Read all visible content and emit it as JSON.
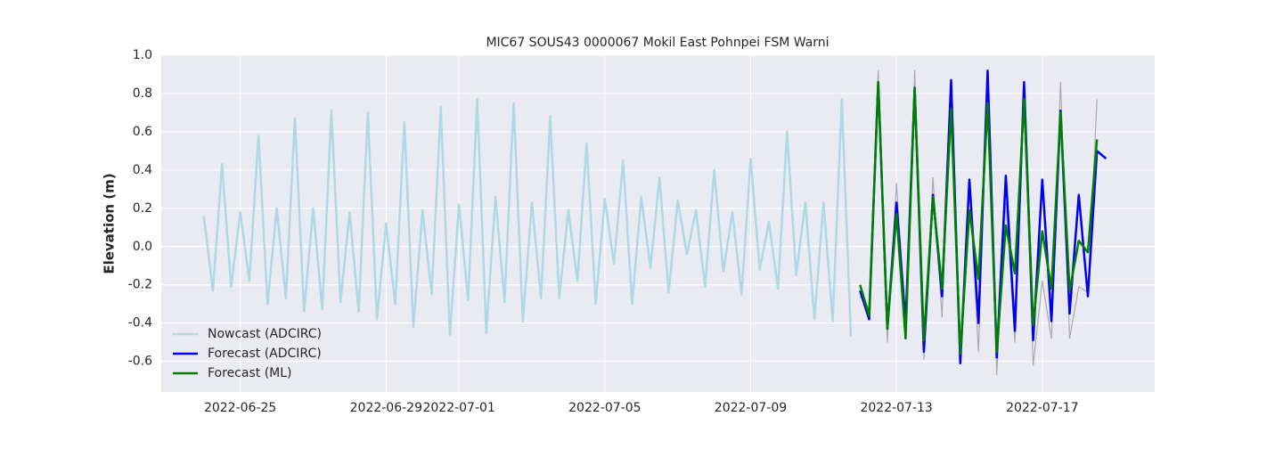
{
  "chart_data": {
    "type": "line",
    "title": "MIC67 SOUS43 0000067 Mokil East Pohnpei FSM Warni",
    "y_label": "Elevation (m)",
    "x": [
      "2022-06-24 00:00",
      "2022-06-24 06:00",
      "2022-06-24 12:00",
      "2022-06-24 18:00",
      "2022-06-25 00:00",
      "2022-06-25 06:00",
      "2022-06-25 12:00",
      "2022-06-25 18:00",
      "2022-06-26 00:00",
      "2022-06-26 06:00",
      "2022-06-26 12:00",
      "2022-06-26 18:00",
      "2022-06-27 00:00",
      "2022-06-27 06:00",
      "2022-06-27 12:00",
      "2022-06-27 18:00",
      "2022-06-28 00:00",
      "2022-06-28 06:00",
      "2022-06-28 12:00",
      "2022-06-28 18:00",
      "2022-06-29 00:00",
      "2022-06-29 06:00",
      "2022-06-29 12:00",
      "2022-06-29 18:00",
      "2022-06-30 00:00",
      "2022-06-30 06:00",
      "2022-06-30 12:00",
      "2022-06-30 18:00",
      "2022-07-01 00:00",
      "2022-07-01 06:00",
      "2022-07-01 12:00",
      "2022-07-01 18:00",
      "2022-07-02 00:00",
      "2022-07-02 06:00",
      "2022-07-02 12:00",
      "2022-07-02 18:00",
      "2022-07-03 00:00",
      "2022-07-03 06:00",
      "2022-07-03 12:00",
      "2022-07-03 18:00",
      "2022-07-04 00:00",
      "2022-07-04 06:00",
      "2022-07-04 12:00",
      "2022-07-04 18:00",
      "2022-07-05 00:00",
      "2022-07-05 06:00",
      "2022-07-05 12:00",
      "2022-07-05 18:00",
      "2022-07-06 00:00",
      "2022-07-06 06:00",
      "2022-07-06 12:00",
      "2022-07-06 18:00",
      "2022-07-07 00:00",
      "2022-07-07 06:00",
      "2022-07-07 12:00",
      "2022-07-07 18:00",
      "2022-07-08 00:00",
      "2022-07-08 06:00",
      "2022-07-08 12:00",
      "2022-07-08 18:00",
      "2022-07-09 00:00",
      "2022-07-09 06:00",
      "2022-07-09 12:00",
      "2022-07-09 18:00",
      "2022-07-10 00:00",
      "2022-07-10 06:00",
      "2022-07-10 12:00",
      "2022-07-10 18:00",
      "2022-07-11 00:00",
      "2022-07-11 06:00",
      "2022-07-11 12:00",
      "2022-07-11 18:00",
      "2022-07-12 00:00",
      "2022-07-12 06:00",
      "2022-07-12 12:00",
      "2022-07-12 18:00",
      "2022-07-13 00:00",
      "2022-07-13 06:00",
      "2022-07-13 12:00",
      "2022-07-13 18:00",
      "2022-07-14 00:00",
      "2022-07-14 06:00",
      "2022-07-14 12:00",
      "2022-07-14 18:00",
      "2022-07-15 00:00",
      "2022-07-15 06:00",
      "2022-07-15 12:00",
      "2022-07-15 18:00",
      "2022-07-16 00:00",
      "2022-07-16 06:00",
      "2022-07-16 12:00",
      "2022-07-16 18:00",
      "2022-07-17 00:00",
      "2022-07-17 06:00",
      "2022-07-17 12:00",
      "2022-07-17 18:00",
      "2022-07-18 00:00",
      "2022-07-18 06:00",
      "2022-07-18 12:00",
      "2022-07-18 18:00"
    ],
    "series": [
      {
        "color": "#aaaaaa",
        "width": 1.2,
        "values": [
          null,
          null,
          null,
          null,
          null,
          null,
          null,
          null,
          null,
          null,
          null,
          null,
          null,
          null,
          null,
          null,
          null,
          null,
          null,
          null,
          null,
          null,
          null,
          null,
          null,
          null,
          null,
          null,
          null,
          null,
          null,
          null,
          null,
          null,
          null,
          null,
          null,
          null,
          null,
          null,
          null,
          null,
          null,
          null,
          null,
          null,
          null,
          null,
          null,
          null,
          null,
          null,
          null,
          null,
          null,
          null,
          null,
          null,
          null,
          null,
          null,
          null,
          null,
          null,
          null,
          null,
          null,
          null,
          null,
          null,
          null,
          null,
          -0.26,
          -0.33,
          0.92,
          -0.5,
          0.33,
          -0.42,
          0.92,
          -0.59,
          0.36,
          -0.37,
          0.84,
          -0.61,
          0.32,
          -0.55,
          0.9,
          -0.67,
          0.23,
          -0.5,
          0.78,
          -0.62,
          -0.18,
          -0.48,
          0.86,
          -0.48,
          -0.21,
          -0.24,
          0.77,
          null
        ]
      },
      {
        "name": "Nowcast (ADCIRC)",
        "color": "#add8e6",
        "width": 2.5,
        "values": [
          0.16,
          -0.23,
          0.43,
          -0.21,
          0.18,
          -0.18,
          0.58,
          -0.3,
          0.2,
          -0.27,
          0.67,
          -0.34,
          0.2,
          -0.33,
          0.71,
          -0.29,
          0.18,
          -0.34,
          0.7,
          -0.38,
          0.12,
          -0.3,
          0.65,
          -0.42,
          0.19,
          -0.25,
          0.73,
          -0.46,
          0.22,
          -0.28,
          0.77,
          -0.45,
          0.26,
          -0.29,
          0.75,
          -0.39,
          0.23,
          -0.27,
          0.68,
          -0.27,
          0.19,
          -0.18,
          0.54,
          -0.3,
          0.25,
          -0.09,
          0.45,
          -0.3,
          0.26,
          -0.11,
          0.36,
          -0.24,
          0.24,
          -0.04,
          0.19,
          -0.21,
          0.4,
          -0.13,
          0.18,
          -0.25,
          0.46,
          -0.12,
          0.13,
          -0.22,
          0.6,
          -0.15,
          0.23,
          -0.38,
          0.23,
          -0.39,
          0.77,
          -0.47,
          null,
          null,
          null,
          null,
          null,
          null,
          null,
          null,
          null,
          null,
          null,
          null,
          null,
          null,
          null,
          null,
          null,
          null,
          null,
          null,
          null,
          null,
          null,
          null,
          null,
          null,
          null,
          null
        ]
      },
      {
        "name": "Forecast (ADCIRC)",
        "color": "#0000ee",
        "width": 2.5,
        "values": [
          null,
          null,
          null,
          null,
          null,
          null,
          null,
          null,
          null,
          null,
          null,
          null,
          null,
          null,
          null,
          null,
          null,
          null,
          null,
          null,
          null,
          null,
          null,
          null,
          null,
          null,
          null,
          null,
          null,
          null,
          null,
          null,
          null,
          null,
          null,
          null,
          null,
          null,
          null,
          null,
          null,
          null,
          null,
          null,
          null,
          null,
          null,
          null,
          null,
          null,
          null,
          null,
          null,
          null,
          null,
          null,
          null,
          null,
          null,
          null,
          null,
          null,
          null,
          null,
          null,
          null,
          null,
          null,
          null,
          null,
          null,
          null,
          -0.23,
          -0.38,
          0.86,
          -0.43,
          0.23,
          -0.4,
          0.83,
          -0.55,
          0.27,
          -0.26,
          0.87,
          -0.61,
          0.35,
          -0.4,
          0.92,
          -0.58,
          0.37,
          -0.44,
          0.86,
          -0.49,
          0.35,
          -0.39,
          0.71,
          -0.35,
          0.27,
          -0.26,
          0.5,
          0.46
        ]
      },
      {
        "name": "Forecast (ML)",
        "color": "#008000",
        "width": 2.5,
        "values": [
          null,
          null,
          null,
          null,
          null,
          null,
          null,
          null,
          null,
          null,
          null,
          null,
          null,
          null,
          null,
          null,
          null,
          null,
          null,
          null,
          null,
          null,
          null,
          null,
          null,
          null,
          null,
          null,
          null,
          null,
          null,
          null,
          null,
          null,
          null,
          null,
          null,
          null,
          null,
          null,
          null,
          null,
          null,
          null,
          null,
          null,
          null,
          null,
          null,
          null,
          null,
          null,
          null,
          null,
          null,
          null,
          null,
          null,
          null,
          null,
          null,
          null,
          null,
          null,
          null,
          null,
          null,
          null,
          null,
          null,
          null,
          null,
          -0.2,
          -0.36,
          0.86,
          -0.43,
          0.17,
          -0.48,
          0.83,
          -0.49,
          0.26,
          -0.22,
          0.72,
          -0.56,
          0.19,
          -0.17,
          0.75,
          -0.55,
          0.11,
          -0.14,
          0.77,
          -0.41,
          0.08,
          -0.22,
          0.7,
          -0.23,
          0.03,
          -0.03,
          0.56,
          null
        ]
      }
    ],
    "xlim": [
      "2022-06-22 20:00",
      "2022-07-20 02:00"
    ],
    "xticks": [
      "2022-06-25",
      "2022-06-29",
      "2022-07-01",
      "2022-07-05",
      "2022-07-09",
      "2022-07-13",
      "2022-07-17"
    ],
    "ylim": [
      -0.76,
      1.0
    ],
    "yticks": [
      -0.6,
      -0.4,
      -0.2,
      {
        "value": 0,
        "label": "0.0"
      },
      0.2,
      0.4,
      0.6,
      0.8,
      {
        "value": 1,
        "label": "1.0"
      }
    ],
    "grid": true,
    "legend": "lower left"
  }
}
